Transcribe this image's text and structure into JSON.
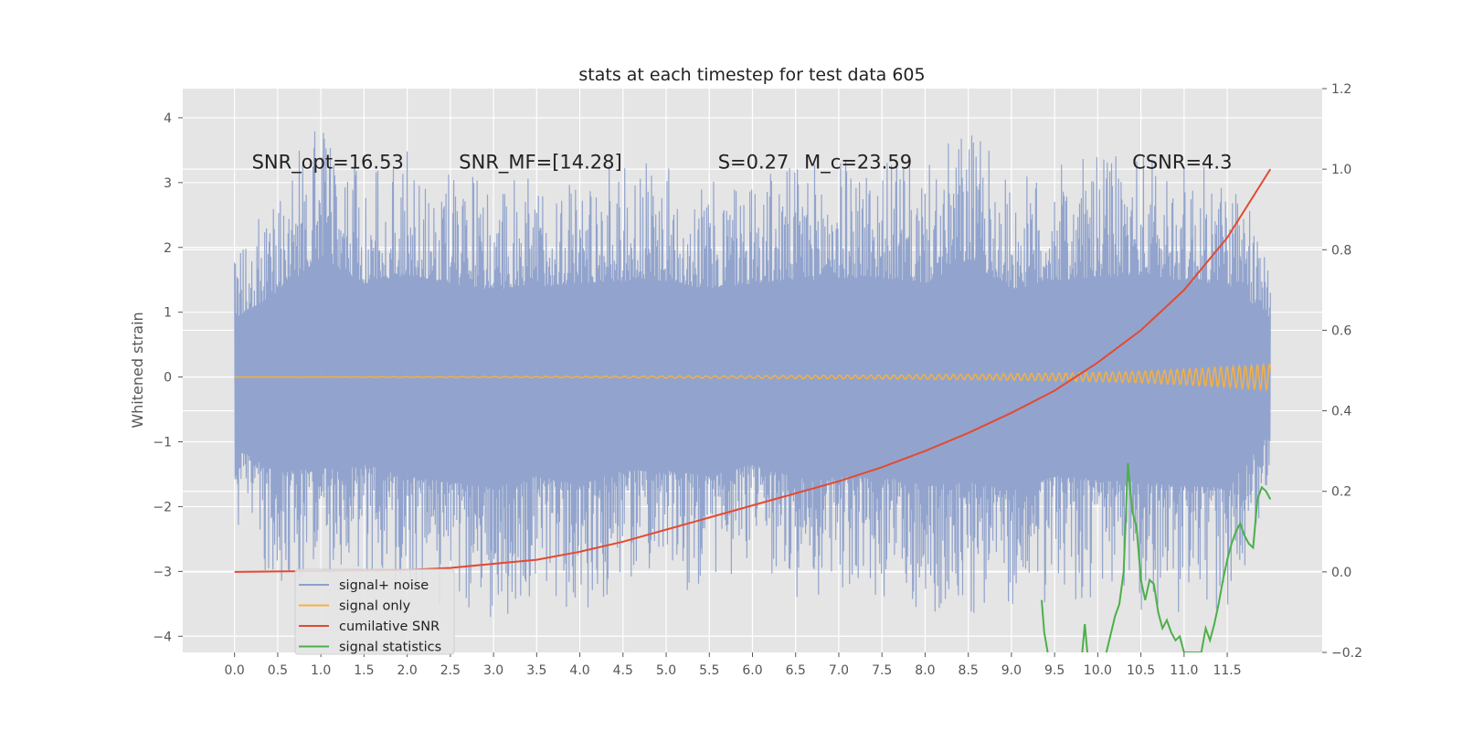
{
  "chart_data": {
    "type": "line",
    "title": "stats at each timestep for test data 605",
    "ylabel": "Whitened strain",
    "xlim": [
      -0.6,
      12.6
    ],
    "ylim": [
      -4.25,
      4.45
    ],
    "y2lim": [
      -0.2,
      1.2
    ],
    "x_ticks": [
      0.0,
      0.5,
      1.0,
      1.5,
      2.0,
      2.5,
      3.0,
      3.5,
      4.0,
      4.5,
      5.0,
      5.5,
      6.0,
      6.5,
      7.0,
      7.5,
      8.0,
      8.5,
      9.0,
      9.5,
      10.0,
      10.5,
      11.0,
      11.5
    ],
    "x_tick_labels": [
      "0.0",
      "0.5",
      "1.0",
      "1.5",
      "2.0",
      "2.5",
      "3.0",
      "3.5",
      "4.0",
      "4.5",
      "5.0",
      "5.5",
      "6.0",
      "6.5",
      "7.0",
      "7.5",
      "8.0",
      "8.5",
      "9.0",
      "9.5",
      "10.0",
      "10.5",
      "11.0",
      "11.5"
    ],
    "y_ticks": [
      -4,
      -3,
      -2,
      -1,
      0,
      1,
      2,
      3,
      4
    ],
    "y_tick_labels": [
      "−4",
      "−3",
      "−2",
      "−1",
      "0",
      "1",
      "2",
      "3",
      "4"
    ],
    "y2_ticks": [
      -0.2,
      0.0,
      0.2,
      0.4,
      0.6,
      0.8,
      1.0,
      1.2
    ],
    "y2_tick_labels": [
      "−0.2",
      "0.0",
      "0.2",
      "0.4",
      "0.6",
      "0.8",
      "1.0",
      "1.2"
    ],
    "grid": true,
    "legend_position": "lower-left",
    "annotations": [
      {
        "x": 0.2,
        "y": 3.3,
        "text": "SNR_opt=16.53"
      },
      {
        "x": 2.6,
        "y": 3.3,
        "text": "SNR_MF=[14.28]"
      },
      {
        "x": 5.6,
        "y": 3.3,
        "text": "S=0.27"
      },
      {
        "x": 6.6,
        "y": 3.3,
        "text": "M_c=23.59"
      },
      {
        "x": 10.4,
        "y": 3.3,
        "text": "CSNR=4.3"
      }
    ],
    "series": [
      {
        "name": "signal+ noise",
        "color": "#8da0cb",
        "axis": "left",
        "envelope": {
          "x": [
            0.0,
            0.5,
            1.0,
            1.5,
            2.0,
            2.5,
            3.0,
            3.5,
            4.0,
            4.5,
            5.0,
            5.5,
            6.0,
            6.5,
            7.0,
            7.5,
            8.0,
            8.5,
            9.0,
            9.5,
            10.0,
            10.5,
            11.0,
            11.5,
            12.0
          ],
          "upper": [
            2.0,
            2.9,
            4.1,
            3.2,
            3.5,
            3.2,
            3.0,
            3.1,
            3.2,
            3.3,
            3.3,
            3.0,
            3.2,
            3.3,
            3.4,
            3.4,
            3.2,
            4.0,
            3.0,
            3.3,
            3.4,
            3.5,
            3.3,
            3.2,
            2.0
          ],
          "lower": [
            -2.4,
            -3.3,
            -3.1,
            -3.0,
            -3.4,
            -3.6,
            -3.8,
            -3.4,
            -3.7,
            -3.2,
            -3.2,
            -3.4,
            -3.0,
            -3.4,
            -3.4,
            -3.4,
            -3.7,
            -3.6,
            -3.9,
            -3.4,
            -3.5,
            -3.6,
            -3.7,
            -3.8,
            -1.9
          ]
        }
      },
      {
        "name": "signal only",
        "color": "#f5b041",
        "axis": "left",
        "amplitude": {
          "x": [
            0.0,
            2.0,
            4.0,
            6.0,
            8.0,
            9.0,
            10.0,
            10.5,
            11.0,
            11.5,
            12.0
          ],
          "a": [
            0.0,
            0.005,
            0.01,
            0.02,
            0.035,
            0.05,
            0.07,
            0.09,
            0.12,
            0.16,
            0.2
          ]
        }
      },
      {
        "name": "cumilative SNR",
        "color": "#e24a33",
        "axis": "right",
        "x": [
          0.0,
          0.5,
          1.0,
          1.5,
          2.0,
          2.5,
          3.0,
          3.5,
          4.0,
          4.5,
          5.0,
          5.5,
          6.0,
          6.5,
          7.0,
          7.5,
          8.0,
          8.5,
          9.0,
          9.5,
          10.0,
          10.5,
          11.0,
          11.5,
          12.0
        ],
        "values": [
          0.0,
          0.001,
          0.002,
          0.003,
          0.005,
          0.01,
          0.02,
          0.03,
          0.05,
          0.075,
          0.105,
          0.135,
          0.165,
          0.195,
          0.225,
          0.26,
          0.3,
          0.345,
          0.395,
          0.45,
          0.52,
          0.6,
          0.7,
          0.83,
          1.0
        ]
      },
      {
        "name": "signal statistics",
        "color": "#4daf4a",
        "axis": "right",
        "segments": [
          {
            "x": [
              9.35,
              9.38,
              9.42
            ],
            "values": [
              -0.07,
              -0.15,
              -0.2
            ]
          },
          {
            "x": [
              9.82,
              9.85,
              9.88
            ],
            "values": [
              -0.2,
              -0.13,
              -0.2
            ]
          },
          {
            "x": [
              10.1,
              10.2,
              10.25,
              10.3,
              10.35,
              10.4,
              10.45,
              10.5,
              10.55,
              10.6,
              10.65,
              10.7,
              10.75,
              10.8,
              10.85,
              10.9,
              10.95,
              11.0,
              11.05,
              11.1,
              11.15,
              11.2
            ],
            "values": [
              -0.2,
              -0.11,
              -0.08,
              0.0,
              0.27,
              0.15,
              0.11,
              -0.02,
              -0.07,
              -0.02,
              -0.03,
              -0.1,
              -0.14,
              -0.12,
              -0.15,
              -0.17,
              -0.16,
              -0.2,
              -0.2,
              -0.2,
              -0.2,
              -0.2
            ]
          },
          {
            "x": [
              11.2,
              11.25,
              11.3,
              11.35,
              11.4,
              11.45,
              11.5,
              11.55,
              11.6,
              11.65,
              11.7,
              11.75,
              11.8,
              11.85,
              11.9,
              11.95,
              12.0
            ],
            "values": [
              -0.2,
              -0.14,
              -0.17,
              -0.13,
              -0.08,
              -0.02,
              0.03,
              0.07,
              0.1,
              0.12,
              0.09,
              0.07,
              0.06,
              0.18,
              0.21,
              0.2,
              0.18
            ]
          }
        ]
      }
    ]
  }
}
